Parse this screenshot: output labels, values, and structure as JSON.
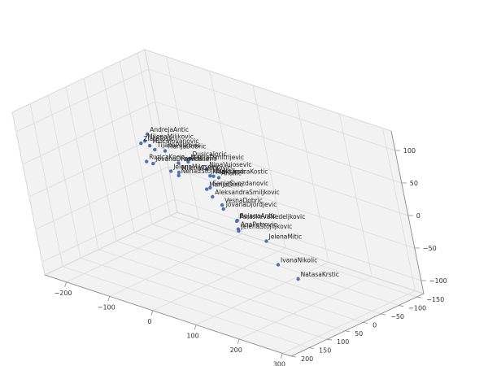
{
  "chart_data": {
    "type": "scatter",
    "dimensions": 3,
    "title": "",
    "xlabel": "",
    "ylabel": "",
    "zlabel": "",
    "grid": true,
    "marker_color": "#4c72b0",
    "x_ticks": [
      "−200",
      "−100",
      "0",
      "100",
      "200",
      "300"
    ],
    "y_ticks": [
      "−150",
      "−100",
      "−50",
      "0",
      "50",
      "100",
      "150",
      "200"
    ],
    "z_ticks": [
      "−100",
      "−50",
      "0",
      "50",
      "100"
    ],
    "points": [
      {
        "label": "DusicaJocic",
        "x": 105,
        "y": 136,
        "z": 120
      },
      {
        "label": "NinaVujosevic",
        "x": 155,
        "y": 150,
        "z": 118
      },
      {
        "label": "AleksandraKostic",
        "x": 110,
        "y": 90,
        "z": 82
      },
      {
        "label": "Anailic",
        "x": 101,
        "y": 68,
        "z": 72
      },
      {
        "label": "MarijaTosic",
        "x": 90,
        "y": 78,
        "z": 75
      },
      {
        "label": "MarijaDimitrijevic",
        "x": 40,
        "y": 75,
        "z": 85
      },
      {
        "label": "PanicMilena",
        "x": 20,
        "y": 80,
        "z": 80
      },
      {
        "label": "MilenaMiljkovic",
        "x": -120,
        "y": 10,
        "z": 65
      },
      {
        "label": "AndrejaAntic",
        "x": -130,
        "y": -10,
        "z": 68
      },
      {
        "label": "MilicaJovanovic",
        "x": -120,
        "y": 0,
        "z": 55
      },
      {
        "label": "MarijaDobric",
        "x": -80,
        "y": 5,
        "z": 57
      },
      {
        "label": "TijanaPetkovic",
        "x": -100,
        "y": 10,
        "z": 56
      },
      {
        "label": "ZlataTosic",
        "x": -170,
        "y": -30,
        "z": 40
      },
      {
        "label": "RuzicaKocic",
        "x": -165,
        "y": -30,
        "z": 13
      },
      {
        "label": "JovanaDramicanin",
        "x": -140,
        "y": -20,
        "z": 18
      },
      {
        "label": "JelenaMilosevic",
        "x": -90,
        "y": -10,
        "z": 20
      },
      {
        "label": "NenadStojkovic",
        "x": -75,
        "y": -12,
        "z": 16
      },
      {
        "label": "MilenaCvetkovic",
        "x": -100,
        "y": -40,
        "z": 8
      },
      {
        "label": "MarijaDinic",
        "x": -20,
        "y": -20,
        "z": 5
      },
      {
        "label": "AleksandraSmiljkovic",
        "x": 10,
        "y": 0,
        "z": 5
      },
      {
        "label": "JovanaDjordjevic",
        "x": 60,
        "y": 30,
        "z": 5
      },
      {
        "label": "VesnaDobric",
        "x": 20,
        "y": -10,
        "z": -8
      },
      {
        "label": "SanjaGvozdanovic",
        "x": -40,
        "y": -50,
        "z": -5
      },
      {
        "label": "JelenaMitic",
        "x": 170,
        "y": 50,
        "z": -15
      },
      {
        "label": "BojanaAntic",
        "x": 40,
        "y": -20,
        "z": -30
      },
      {
        "label": "NatasaKrstic",
        "x": 230,
        "y": 50,
        "z": -60
      },
      {
        "label": "ParaskevaNedeljkovic",
        "x": -10,
        "y": -70,
        "z": -55
      },
      {
        "label": "JelenaStojiljkovic",
        "x": -10,
        "y": -70,
        "z": -70
      },
      {
        "label": "AnaPetrovic",
        "x": -20,
        "y": -80,
        "z": -72
      },
      {
        "label": "IvanaNikolic",
        "x": 100,
        "y": -40,
        "z": -90
      }
    ]
  }
}
